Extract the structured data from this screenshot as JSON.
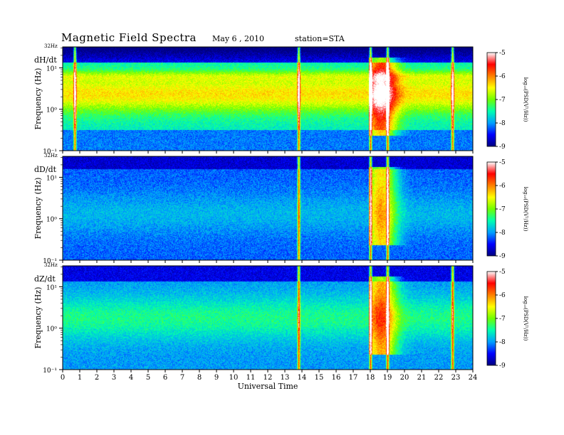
{
  "header": {
    "title": "Magnetic  Field  Spectra",
    "date": "May 6  , 2010",
    "station": "station=STA"
  },
  "colors": {
    "background": "#ffffff",
    "colormap": [
      "#000080",
      "#0000ff",
      "#00a0ff",
      "#00ffb0",
      "#70ff00",
      "#ffff00",
      "#ff8000",
      "#ff0000",
      "#ffffff"
    ]
  },
  "chart_data": [
    {
      "type": "heatmap",
      "panel": "dH/dt",
      "ylabel": "Frequency  (Hz)",
      "xlabel": "",
      "x_range": [
        0,
        24
      ],
      "y_range_hz": [
        0.1,
        32
      ],
      "y_scale": "log",
      "top_label": "32Hz",
      "y_ticks": [
        "10⁻¹",
        "10⁰",
        "10¹"
      ],
      "colorbar": {
        "label": "log₁₀(PSD(V²/Hz))",
        "range": [
          -9,
          -5
        ],
        "ticks": [
          "-5",
          "-6",
          "-7",
          "-8",
          "-9"
        ]
      },
      "activity_bursts_ut": [
        0.7,
        13.8,
        18.0,
        19.0,
        22.8
      ]
    },
    {
      "type": "heatmap",
      "panel": "dD/dt",
      "ylabel": "Frequency  (Hz)",
      "xlabel": "",
      "x_range": [
        0,
        24
      ],
      "y_range_hz": [
        0.1,
        32
      ],
      "y_scale": "log",
      "top_label": "32Hz",
      "y_ticks": [
        "10⁻¹",
        "10⁰",
        "10¹"
      ],
      "colorbar": {
        "label": "log₁₀(PSD(V²/Hz))",
        "range": [
          -9,
          -5
        ],
        "ticks": [
          "-5",
          "-6",
          "-7",
          "-8",
          "-9"
        ]
      },
      "activity_bursts_ut": [
        13.8,
        18.0,
        19.0
      ]
    },
    {
      "type": "heatmap",
      "panel": "dZ/dt",
      "ylabel": "Frequency  (Hz)",
      "xlabel": "Universal Time",
      "x_range": [
        0,
        24
      ],
      "y_range_hz": [
        0.1,
        32
      ],
      "y_scale": "log",
      "top_label": "32Hz",
      "y_ticks": [
        "10⁻¹",
        "10⁰",
        "10¹"
      ],
      "colorbar": {
        "label": "log₁₀(PSD(V²/Hz))",
        "range": [
          -9,
          -5
        ],
        "ticks": [
          "-5",
          "-6",
          "-7",
          "-8",
          "-9"
        ]
      },
      "x_ticks": [
        "0",
        "1",
        "2",
        "3",
        "4",
        "5",
        "6",
        "7",
        "8",
        "9",
        "10",
        "11",
        "12",
        "13",
        "14",
        "15",
        "16",
        "17",
        "18",
        "19",
        "20",
        "21",
        "22",
        "23",
        "24"
      ],
      "activity_bursts_ut": [
        13.8,
        18.0,
        19.0,
        22.8
      ]
    }
  ]
}
